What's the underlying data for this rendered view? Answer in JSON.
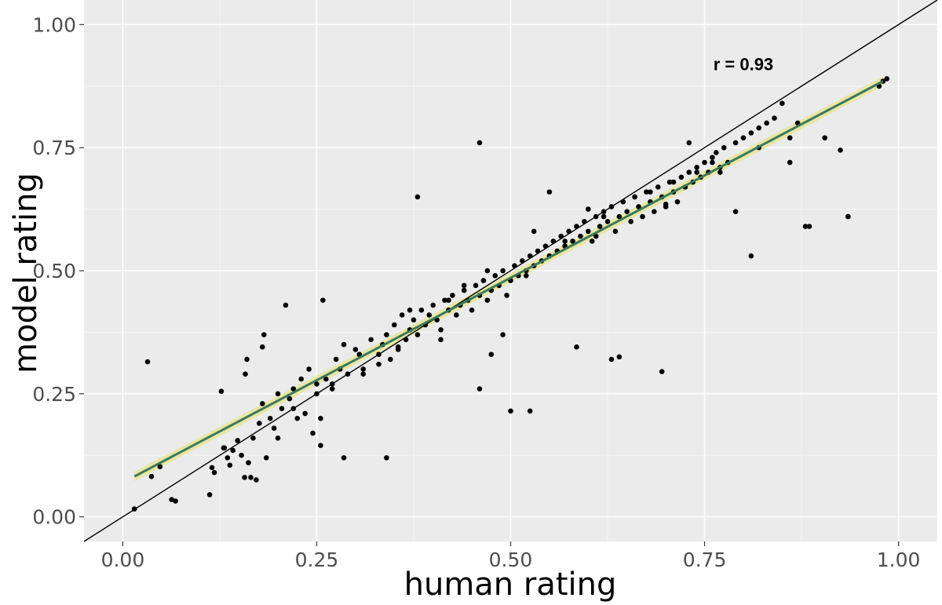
{
  "chart_data": {
    "type": "scatter",
    "title": "",
    "xlabel": "human rating",
    "ylabel": "model rating",
    "xlim": [
      -0.05,
      1.05
    ],
    "ylim": [
      -0.05,
      1.05
    ],
    "xticks": [
      0.0,
      0.25,
      0.5,
      0.75,
      1.0
    ],
    "xtick_labels": [
      "0.00",
      "0.25",
      "0.50",
      "0.75",
      "1.00"
    ],
    "yticks": [
      0.0,
      0.25,
      0.5,
      0.75,
      1.0
    ],
    "ytick_labels": [
      "0.00",
      "0.25",
      "0.50",
      "0.75",
      "1.00"
    ],
    "grid": true,
    "annotation": {
      "text": "r = 0.93",
      "x": 0.8,
      "y": 0.92
    },
    "identity_line": {
      "x": [
        -0.05,
        1.05
      ],
      "y": [
        -0.05,
        1.05
      ],
      "color": "#000000"
    },
    "fit_line": {
      "x": [
        0.015,
        0.98
      ],
      "y": [
        0.082,
        0.885
      ],
      "color": "#3b7a57"
    },
    "confidence_band": {
      "color": "#e8e6a0"
    },
    "points": {
      "x": [
        0.015,
        0.032,
        0.037,
        0.048,
        0.063,
        0.068,
        0.112,
        0.115,
        0.118,
        0.127,
        0.131,
        0.135,
        0.138,
        0.142,
        0.148,
        0.153,
        0.157,
        0.158,
        0.162,
        0.165,
        0.168,
        0.172,
        0.176,
        0.18,
        0.182,
        0.185,
        0.19,
        0.195,
        0.2,
        0.205,
        0.21,
        0.215,
        0.22,
        0.225,
        0.23,
        0.235,
        0.24,
        0.245,
        0.25,
        0.255,
        0.258,
        0.262,
        0.27,
        0.275,
        0.28,
        0.285,
        0.29,
        0.3,
        0.305,
        0.31,
        0.32,
        0.33,
        0.335,
        0.34,
        0.345,
        0.35,
        0.355,
        0.36,
        0.365,
        0.37,
        0.375,
        0.38,
        0.385,
        0.39,
        0.395,
        0.4,
        0.405,
        0.41,
        0.415,
        0.42,
        0.425,
        0.43,
        0.435,
        0.44,
        0.445,
        0.45,
        0.455,
        0.46,
        0.465,
        0.47,
        0.475,
        0.48,
        0.485,
        0.49,
        0.495,
        0.5,
        0.505,
        0.51,
        0.515,
        0.52,
        0.525,
        0.53,
        0.535,
        0.54,
        0.545,
        0.55,
        0.555,
        0.56,
        0.565,
        0.57,
        0.575,
        0.58,
        0.585,
        0.59,
        0.595,
        0.6,
        0.605,
        0.61,
        0.615,
        0.62,
        0.625,
        0.63,
        0.635,
        0.64,
        0.645,
        0.65,
        0.655,
        0.66,
        0.665,
        0.67,
        0.675,
        0.68,
        0.685,
        0.69,
        0.695,
        0.7,
        0.705,
        0.71,
        0.715,
        0.72,
        0.725,
        0.73,
        0.735,
        0.74,
        0.745,
        0.75,
        0.755,
        0.76,
        0.765,
        0.77,
        0.775,
        0.78,
        0.79,
        0.8,
        0.81,
        0.82,
        0.83,
        0.84,
        0.85,
        0.86,
        0.87,
        0.885,
        0.905,
        0.925,
        0.935,
        0.975,
        0.98,
        0.985,
        0.18,
        0.22,
        0.255,
        0.285,
        0.34,
        0.46,
        0.525,
        0.585,
        0.475,
        0.5,
        0.37,
        0.355,
        0.695,
        0.63,
        0.64,
        0.7,
        0.88,
        0.935,
        0.81,
        0.79,
        0.77,
        0.73,
        0.46,
        0.53,
        0.55,
        0.6,
        0.49,
        0.38,
        0.16,
        0.2,
        0.25,
        0.33,
        0.41,
        0.44,
        0.52,
        0.57,
        0.62,
        0.66,
        0.71,
        0.76,
        0.13,
        0.27,
        0.31,
        0.42,
        0.47,
        0.55,
        0.61,
        0.68,
        0.74,
        0.82,
        0.86
      ],
      "y": [
        0.016,
        0.315,
        0.082,
        0.102,
        0.035,
        0.032,
        0.045,
        0.1,
        0.09,
        0.255,
        0.14,
        0.12,
        0.105,
        0.135,
        0.155,
        0.125,
        0.08,
        0.29,
        0.11,
        0.08,
        0.16,
        0.075,
        0.19,
        0.23,
        0.37,
        0.12,
        0.2,
        0.18,
        0.16,
        0.22,
        0.43,
        0.24,
        0.26,
        0.2,
        0.28,
        0.21,
        0.3,
        0.17,
        0.25,
        0.2,
        0.44,
        0.28,
        0.26,
        0.32,
        0.3,
        0.35,
        0.29,
        0.34,
        0.33,
        0.3,
        0.36,
        0.31,
        0.35,
        0.37,
        0.32,
        0.39,
        0.34,
        0.41,
        0.36,
        0.38,
        0.4,
        0.37,
        0.42,
        0.39,
        0.41,
        0.43,
        0.4,
        0.38,
        0.44,
        0.42,
        0.45,
        0.41,
        0.43,
        0.46,
        0.44,
        0.42,
        0.47,
        0.45,
        0.48,
        0.44,
        0.46,
        0.49,
        0.47,
        0.5,
        0.45,
        0.48,
        0.51,
        0.49,
        0.52,
        0.5,
        0.53,
        0.51,
        0.54,
        0.52,
        0.55,
        0.53,
        0.56,
        0.54,
        0.57,
        0.55,
        0.58,
        0.56,
        0.59,
        0.57,
        0.6,
        0.58,
        0.56,
        0.61,
        0.59,
        0.62,
        0.6,
        0.63,
        0.58,
        0.61,
        0.64,
        0.62,
        0.6,
        0.65,
        0.63,
        0.61,
        0.66,
        0.64,
        0.62,
        0.67,
        0.65,
        0.63,
        0.68,
        0.66,
        0.64,
        0.69,
        0.67,
        0.7,
        0.68,
        0.71,
        0.69,
        0.72,
        0.7,
        0.73,
        0.74,
        0.71,
        0.75,
        0.72,
        0.76,
        0.77,
        0.78,
        0.79,
        0.8,
        0.81,
        0.84,
        0.77,
        0.8,
        0.59,
        0.77,
        0.745,
        0.61,
        0.875,
        0.885,
        0.89,
        0.345,
        0.22,
        0.145,
        0.12,
        0.12,
        0.26,
        0.215,
        0.345,
        0.33,
        0.215,
        0.42,
        0.345,
        0.295,
        0.32,
        0.325,
        0.635,
        0.59,
        0.61,
        0.53,
        0.62,
        0.7,
        0.76,
        0.76,
        0.58,
        0.66,
        0.625,
        0.37,
        0.65,
        0.32,
        0.25,
        0.27,
        0.33,
        0.36,
        0.47,
        0.49,
        0.56,
        0.61,
        0.65,
        0.68,
        0.72,
        0.14,
        0.27,
        0.29,
        0.44,
        0.5,
        0.53,
        0.57,
        0.66,
        0.7,
        0.75,
        0.72
      ]
    },
    "colors": {
      "panel_bg": "#ebebeb",
      "grid_major": "#ffffff",
      "grid_minor": "#f5f5f5",
      "point": "#000000"
    }
  }
}
